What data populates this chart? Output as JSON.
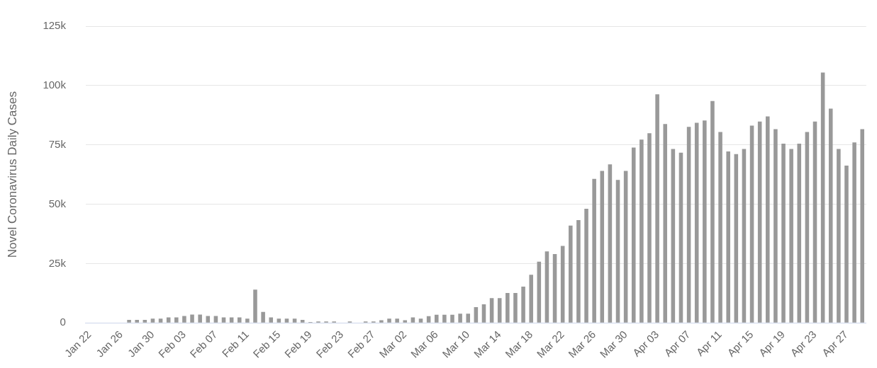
{
  "chart_data": {
    "type": "bar",
    "ylabel": "Novel Coronavirus Daily Cases",
    "categories": [
      "Jan 22",
      null,
      null,
      null,
      "Jan 26",
      null,
      null,
      null,
      "Jan 30",
      null,
      null,
      null,
      "Feb 03",
      null,
      null,
      null,
      "Feb 07",
      null,
      null,
      null,
      "Feb 11",
      null,
      null,
      null,
      "Feb 15",
      null,
      null,
      null,
      "Feb 19",
      null,
      null,
      null,
      "Feb 23",
      null,
      null,
      null,
      "Feb 27",
      null,
      null,
      null,
      "Mar 02",
      null,
      null,
      null,
      "Mar 06",
      null,
      null,
      null,
      "Mar 10",
      null,
      null,
      null,
      "Mar 14",
      null,
      null,
      null,
      "Mar 18",
      null,
      null,
      null,
      "Mar 22",
      null,
      null,
      null,
      "Mar 26",
      null,
      null,
      null,
      "Mar 30",
      null,
      null,
      null,
      "Apr 03",
      null,
      null,
      null,
      "Apr 07",
      null,
      null,
      null,
      "Apr 11",
      null,
      null,
      null,
      "Apr 15",
      null,
      null,
      null,
      "Apr 19",
      null,
      null,
      null,
      "Apr 23",
      null,
      null,
      null,
      "Apr 27",
      null,
      null
    ],
    "values": [
      0,
      0,
      0,
      0,
      0,
      1300,
      1300,
      1300,
      1800,
      1800,
      2300,
      2300,
      2900,
      3500,
      3500,
      2900,
      2900,
      2300,
      2300,
      2300,
      1800,
      14000,
      4600,
      2300,
      1800,
      1800,
      1800,
      1300,
      400,
      600,
      600,
      600,
      0,
      600,
      0,
      600,
      600,
      1100,
      1800,
      1800,
      1100,
      2300,
      1800,
      2800,
      3400,
      3400,
      3400,
      3900,
      3900,
      6600,
      7800,
      10400,
      10400,
      12600,
      12600,
      15300,
      20300,
      25800,
      30100,
      29000,
      32400,
      41000,
      43300,
      48100,
      60700,
      64000,
      66800,
      60200,
      64000,
      73900,
      77200,
      79900,
      96300,
      83800,
      73300,
      71700,
      82600,
      84300,
      85300,
      93500,
      80400,
      72200,
      71100,
      73300,
      83100,
      84800,
      87000,
      81600,
      75500,
      73300,
      75500,
      80400,
      84800,
      105500,
      90300,
      73300,
      66300,
      76000,
      81600
    ],
    "color": "#999999",
    "ylim": [
      0,
      125000
    ],
    "yticks": [
      0,
      {
        "value": 25000,
        "label": "25k"
      },
      {
        "value": 50000,
        "label": "50k"
      },
      {
        "value": 75000,
        "label": "75k"
      },
      {
        "value": 100000,
        "label": "100k"
      },
      {
        "value": 125000,
        "label": "125k"
      }
    ],
    "grid": "y",
    "legend": false
  }
}
